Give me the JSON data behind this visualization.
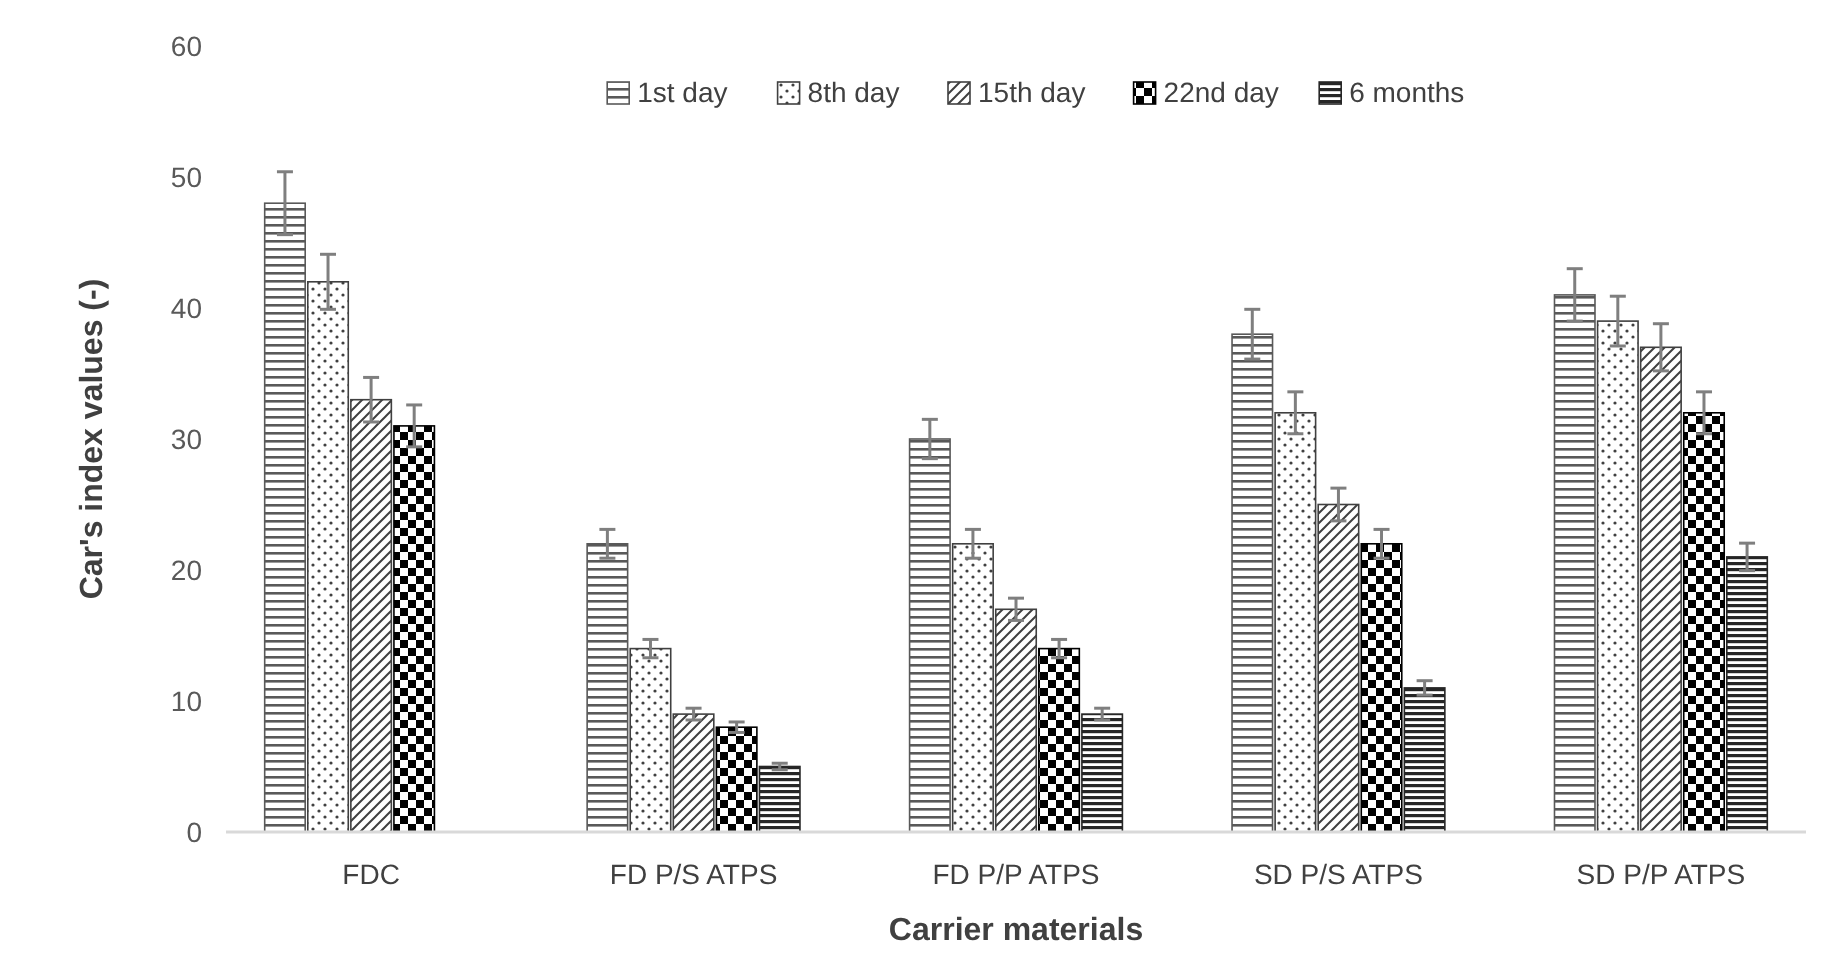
{
  "chart_data": {
    "type": "bar",
    "xlabel": "Carrier materials",
    "ylabel": "Car's index values (-)",
    "categories": [
      "FDC",
      "FD P/S ATPS",
      "FD P/P ATPS",
      "SD P/S ATPS",
      "SD P/P ATPS"
    ],
    "ylim": [
      0,
      60
    ],
    "yticks": [
      0,
      10,
      20,
      30,
      40,
      50,
      60
    ],
    "grid": false,
    "legend": "top",
    "series": [
      {
        "name": "1st day",
        "color": "#595959",
        "values": [
          48,
          22,
          30,
          38,
          41
        ],
        "errors": [
          2.4,
          1.1,
          1.5,
          1.9,
          2.0
        ]
      },
      {
        "name": "8th day",
        "color": "#404040",
        "values": [
          42,
          14,
          22,
          32,
          39
        ],
        "errors": [
          2.1,
          0.7,
          1.1,
          1.6,
          1.9
        ]
      },
      {
        "name": "15th day",
        "color": "#404040",
        "values": [
          33,
          9,
          17,
          25,
          37
        ],
        "errors": [
          1.7,
          0.45,
          0.85,
          1.25,
          1.8
        ]
      },
      {
        "name": "22nd day",
        "color": "#000000",
        "values": [
          31,
          8,
          14,
          22,
          32
        ],
        "errors": [
          1.6,
          0.4,
          0.7,
          1.1,
          1.6
        ]
      },
      {
        "name": "6 months",
        "color": "#262626",
        "values": [
          null,
          5,
          9,
          11,
          21
        ],
        "errors": [
          null,
          0.25,
          0.45,
          0.55,
          1.05
        ]
      }
    ]
  }
}
